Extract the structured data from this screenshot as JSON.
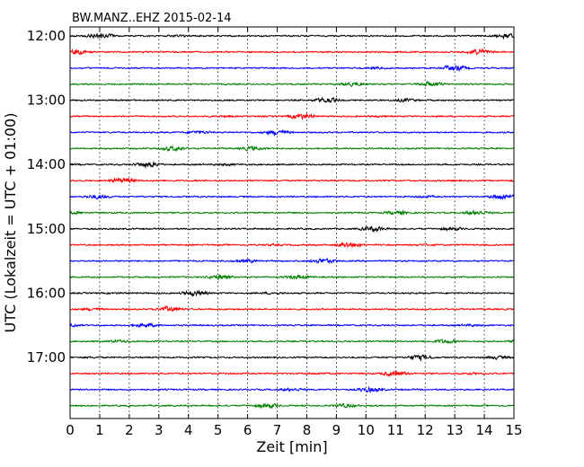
{
  "chart_data": {
    "type": "line",
    "title": "BW.MANZ..EHZ 2015-02-14",
    "xlabel": "Zeit  [min]",
    "ylabel": "UTC (Lokalzeit = UTC + 01:00)",
    "xlim": [
      0,
      15
    ],
    "x_ticks": [
      "0",
      "1",
      "2",
      "3",
      "4",
      "5",
      "6",
      "7",
      "8",
      "9",
      "10",
      "11",
      "12",
      "13",
      "14",
      "15"
    ],
    "y_ticks": [
      "12:00",
      "13:00",
      "14:00",
      "15:00",
      "16:00",
      "17:00"
    ],
    "trace_start_times": [
      "12:00",
      "12:15",
      "12:30",
      "12:45",
      "13:00",
      "13:15",
      "13:30",
      "13:45",
      "14:00",
      "14:15",
      "14:30",
      "14:45",
      "15:00",
      "15:15",
      "15:30",
      "15:45",
      "16:00",
      "16:15",
      "16:30",
      "16:45",
      "17:00",
      "17:15",
      "17:30",
      "17:45"
    ],
    "trace_colors": [
      "#000000",
      "#ff0000",
      "#0000ff",
      "#007f00"
    ],
    "vertical_grid": "dotted",
    "waveform": "seismic noise (amplitude not labeled)"
  }
}
